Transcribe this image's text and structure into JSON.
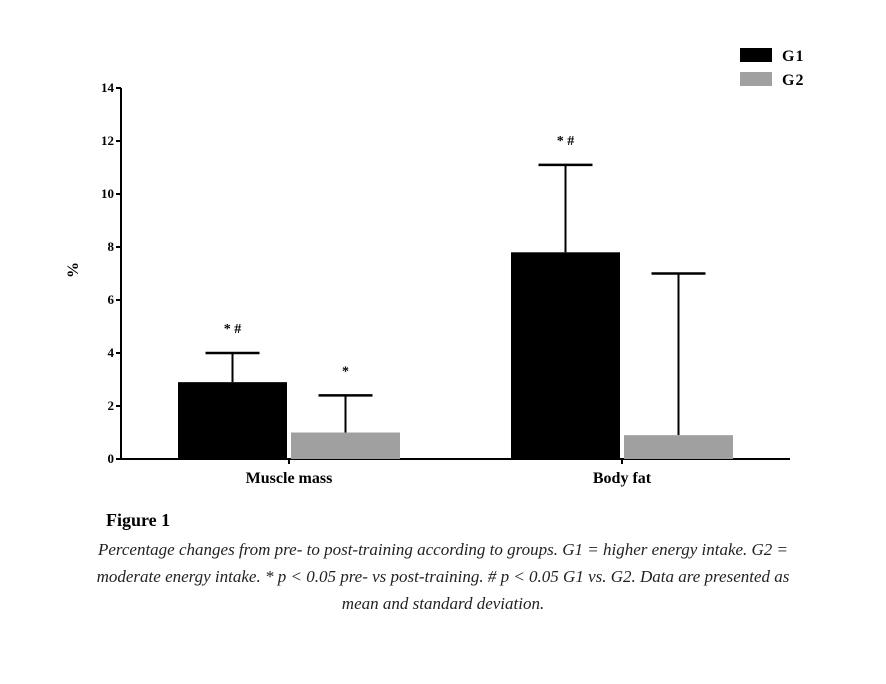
{
  "figure": {
    "title": "Figure 1",
    "caption": "Percentage changes from pre- to post-training according to groups. G1 = higher energy intake. G2 = moderate energy intake. * p < 0.05 pre- vs post-training. # p < 0.05 G1 vs. G2. Data are presented as mean and standard deviation."
  },
  "chart_data": {
    "type": "bar",
    "title": "",
    "xlabel": "",
    "ylabel": "%",
    "ylim": [
      0,
      14
    ],
    "yticks": [
      0,
      2,
      4,
      6,
      8,
      10,
      12,
      14
    ],
    "categories": [
      "Muscle mass",
      "Body fat"
    ],
    "series": [
      {
        "name": "G1",
        "color": "#000000",
        "values": [
          2.9,
          7.8
        ],
        "sd": [
          1.1,
          3.3
        ],
        "annotations": [
          "* #",
          "* #"
        ]
      },
      {
        "name": "G2",
        "color": "#a0a0a0",
        "values": [
          1.0,
          0.9
        ],
        "sd": [
          1.4,
          6.1
        ],
        "annotations": [
          "*",
          ""
        ]
      }
    ],
    "legend_position": "top-right",
    "grid": false
  }
}
